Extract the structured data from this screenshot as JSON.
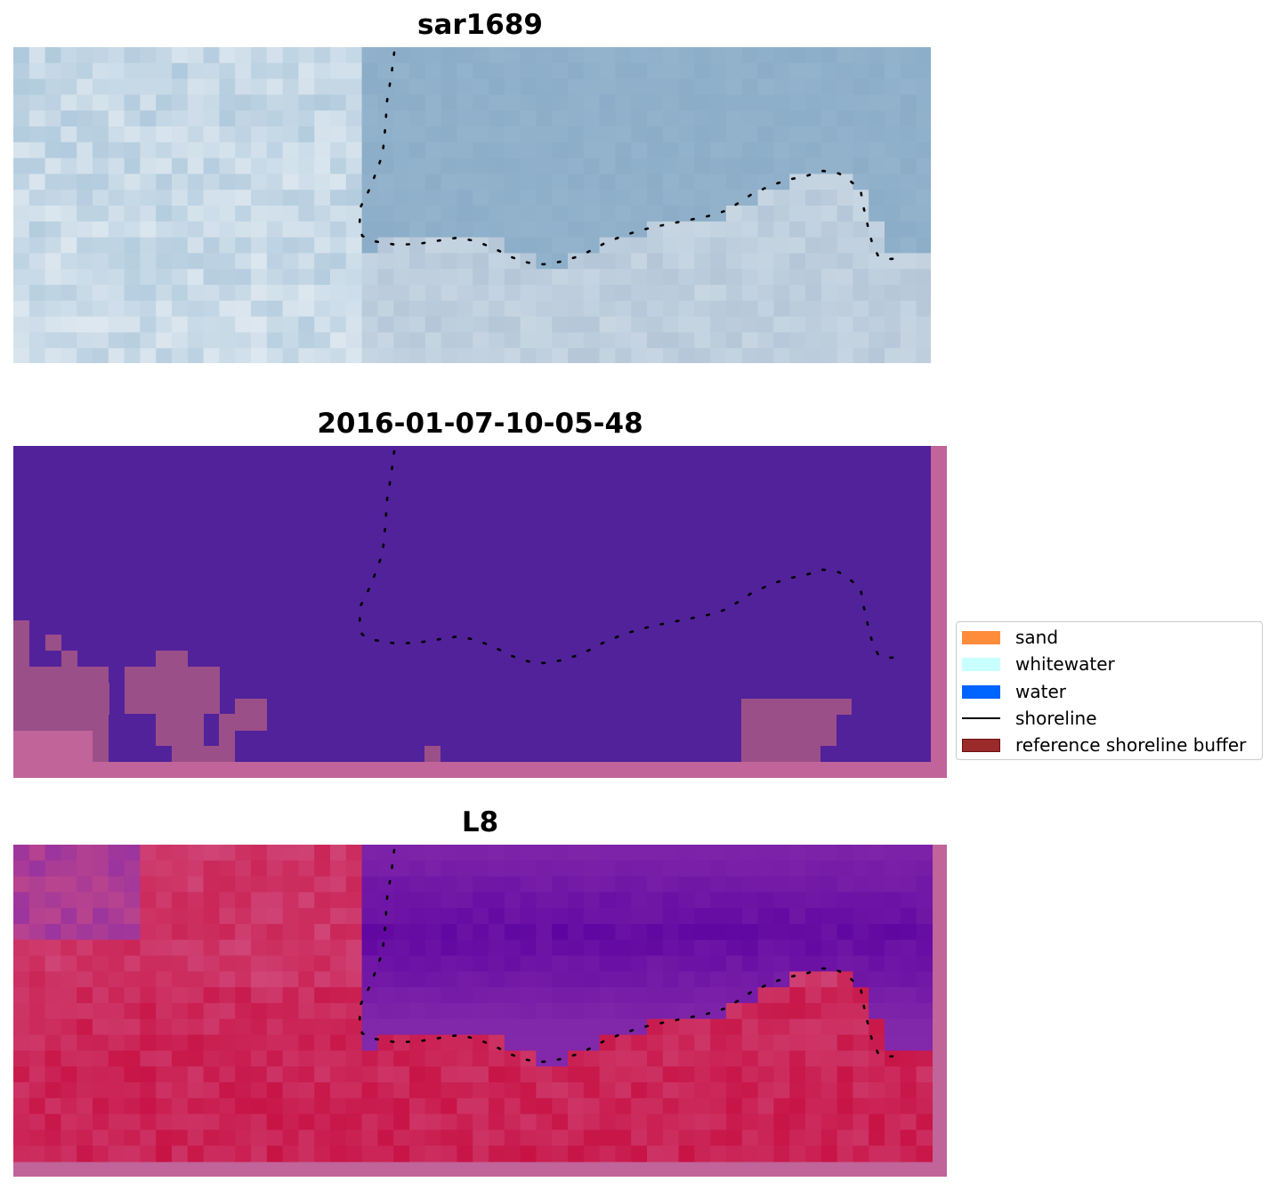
{
  "panels": {
    "rgb": {
      "title": "sar1689"
    },
    "classified": {
      "title": "2016-01-07-10-05-48"
    },
    "index": {
      "title": "L8"
    }
  },
  "legend": {
    "items": [
      {
        "label": "sand",
        "color": "#ff8c3a",
        "kind": "patch"
      },
      {
        "label": "whitewater",
        "color": "#c8ffff",
        "kind": "patch"
      },
      {
        "label": "water",
        "color": "#0064ff",
        "kind": "patch"
      },
      {
        "label": "shoreline",
        "color": "#000000",
        "kind": "line"
      },
      {
        "label": "reference shoreline buffer",
        "color": "#9b2a2a",
        "kind": "patch"
      }
    ]
  },
  "colors": {
    "classified_water_overlay": "#52229a",
    "classified_land": "#9b4f88",
    "classified_pink": "#c0649a",
    "buffer_edge": "#c0649a",
    "shoreline": "#000000"
  }
}
